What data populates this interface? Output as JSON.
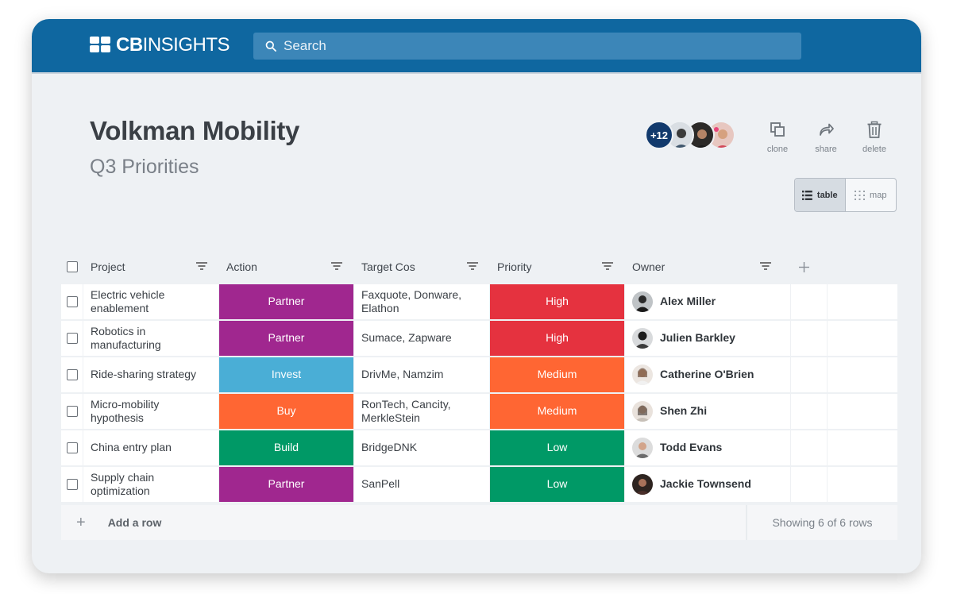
{
  "app": {
    "brand": "CBINSIGHTS",
    "brand_bold": "CB",
    "brand_light": "INSIGHTS"
  },
  "search": {
    "placeholder": "Search"
  },
  "page": {
    "title": "Volkman Mobility",
    "subtitle": "Q3 Priorities"
  },
  "collaborators": {
    "count_label": "+12"
  },
  "actions": {
    "clone": "clone",
    "share": "share",
    "delete": "delete"
  },
  "views": {
    "table": "table",
    "map": "map"
  },
  "table": {
    "columns": [
      "Project",
      "Action",
      "Target Cos",
      "Priority",
      "Owner"
    ],
    "rows": [
      {
        "project": "Electric vehicle enablement",
        "action": "Partner",
        "targets": "Faxquote, Donware, Elathon",
        "priority": "High",
        "owner": "Alex Miller"
      },
      {
        "project": "Robotics in manufacturing",
        "action": "Partner",
        "targets": "Sumace, Zapware",
        "priority": "High",
        "owner": "Julien Barkley"
      },
      {
        "project": "Ride-sharing strategy",
        "action": "Invest",
        "targets": "DrivMe, Namzim",
        "priority": "Medium",
        "owner": "Catherine O'Brien"
      },
      {
        "project": "Micro-mobility hypothesis",
        "action": "Buy",
        "targets": "RonTech, Cancity, MerkleStein",
        "priority": "Medium",
        "owner": "Shen Zhi"
      },
      {
        "project": "China entry plan",
        "action": "Build",
        "targets": "BridgeDNK",
        "priority": "Low",
        "owner": "Todd Evans"
      },
      {
        "project": "Supply chain optimization",
        "action": "Partner",
        "targets": "SanPell",
        "priority": "Low",
        "owner": "Jackie Townsend"
      }
    ],
    "add_row_label": "Add a row",
    "showing_label": "Showing 6 of 6 rows"
  },
  "colors": {
    "topbar": "#0f67a0",
    "action": {
      "Partner": "#a0278f",
      "Invest": "#4aaed6",
      "Buy": "#ff6633",
      "Build": "#009966"
    },
    "priority": {
      "High": "#e5323f",
      "Medium": "#ff6633",
      "Low": "#009966"
    }
  },
  "icons": {
    "search": "search-icon",
    "clone": "clone-icon",
    "share": "share-icon",
    "delete": "trash-icon",
    "table_view": "list-icon",
    "map_view": "grid-dots-icon",
    "filter": "filter-icon",
    "add": "plus-icon"
  }
}
